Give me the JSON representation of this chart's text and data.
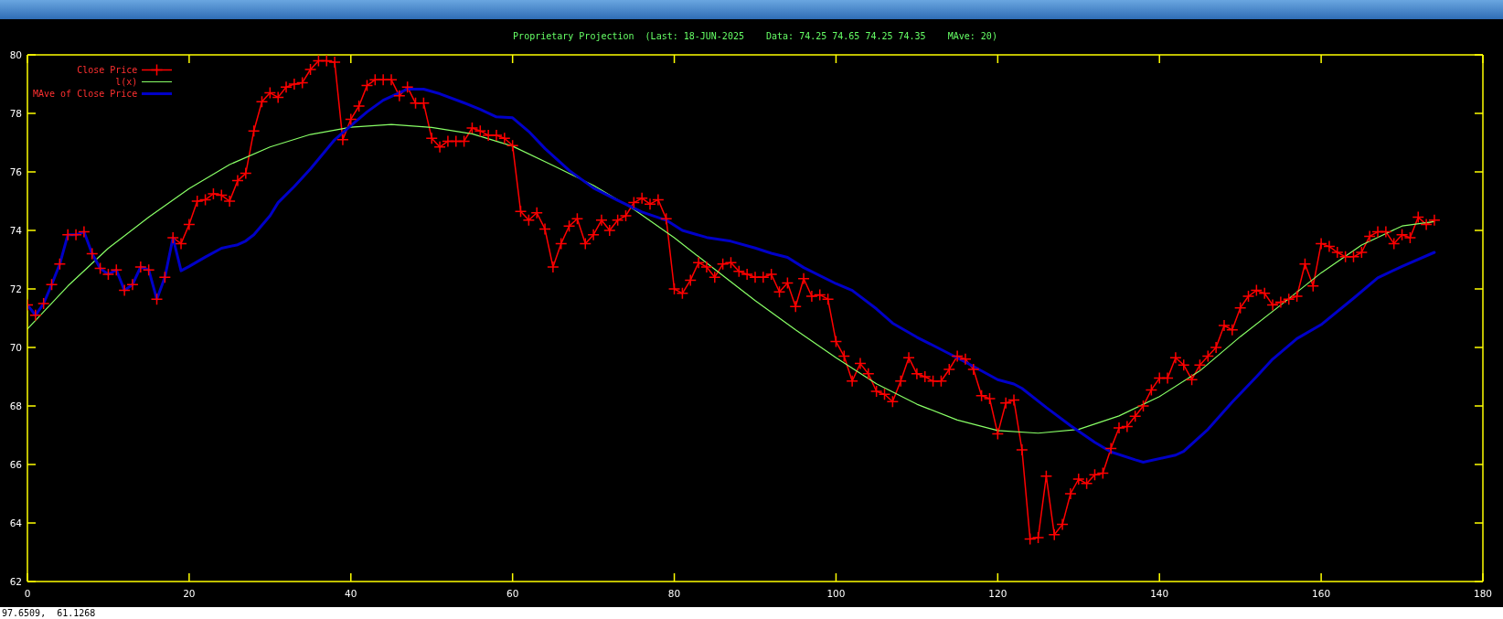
{
  "chart_data": {
    "type": "line",
    "title": "Proprietary Projection  (Last: 18-JUN-2025    Data: 74.25 74.65 74.25 74.35    MAve: 20)",
    "x": [
      0,
      1,
      2,
      3,
      4,
      5,
      6,
      7,
      8,
      9,
      10,
      11,
      12,
      13,
      14,
      15,
      16,
      17,
      18,
      19,
      20,
      21,
      22,
      23,
      24,
      25,
      26,
      27,
      28,
      29,
      30,
      31,
      32,
      33,
      34,
      35,
      36,
      37,
      38,
      39,
      40,
      41,
      42,
      43,
      44,
      45,
      46,
      47,
      48,
      49,
      50,
      51,
      52,
      53,
      54,
      55,
      56,
      57,
      58,
      59,
      60,
      61,
      62,
      63,
      64,
      65,
      66,
      67,
      68,
      69,
      70,
      71,
      72,
      73,
      74,
      75,
      76,
      77,
      78,
      79,
      80,
      81,
      82,
      83,
      84,
      85,
      86,
      87,
      88,
      89,
      90,
      91,
      92,
      93,
      94,
      95,
      96,
      97,
      98,
      99,
      100,
      101,
      102,
      103,
      104,
      105,
      106,
      107,
      108,
      109,
      110,
      111,
      112,
      113,
      114,
      115,
      116,
      117,
      118,
      119,
      120,
      121,
      122,
      123,
      124,
      125,
      126,
      127,
      128,
      129,
      130,
      131,
      132,
      133,
      134,
      135,
      136,
      137,
      138,
      139,
      140,
      141,
      142,
      143,
      144,
      145,
      146,
      147,
      148,
      149,
      150,
      151,
      152,
      153,
      154,
      155,
      156,
      157,
      158,
      159,
      160,
      161,
      162,
      163,
      164,
      165,
      166,
      167,
      168,
      169,
      170,
      171,
      172,
      173,
      174
    ],
    "series": [
      {
        "name": "Close Price",
        "color": "#ff0000",
        "marker": "cross",
        "values": [
          71.45,
          71.1,
          71.5,
          72.15,
          72.85,
          73.85,
          73.85,
          73.95,
          73.2,
          72.7,
          72.5,
          72.65,
          71.95,
          72.15,
          72.75,
          72.65,
          71.65,
          72.4,
          73.75,
          73.55,
          74.2,
          75.0,
          75.05,
          75.25,
          75.2,
          75.0,
          75.7,
          75.95,
          77.4,
          78.4,
          78.7,
          78.55,
          78.9,
          79.0,
          79.05,
          79.5,
          79.8,
          79.8,
          79.75,
          77.1,
          77.8,
          78.25,
          78.95,
          79.15,
          79.15,
          79.15,
          78.6,
          78.9,
          78.35,
          78.35,
          77.15,
          76.85,
          77.05,
          77.05,
          77.05,
          77.5,
          77.4,
          77.25,
          77.25,
          77.15,
          76.9,
          74.65,
          74.35,
          74.6,
          74.05,
          72.75,
          73.55,
          74.15,
          74.4,
          73.55,
          73.85,
          74.35,
          74.0,
          74.35,
          74.5,
          74.95,
          75.1,
          74.9,
          75.05,
          74.4,
          72.0,
          71.85,
          72.3,
          72.9,
          72.75,
          72.4,
          72.85,
          72.9,
          72.6,
          72.5,
          72.4,
          72.4,
          72.5,
          71.9,
          72.2,
          71.4,
          72.35,
          71.75,
          71.8,
          71.65,
          70.2,
          69.7,
          68.85,
          69.45,
          69.1,
          68.5,
          68.4,
          68.15,
          68.85,
          69.65,
          69.1,
          69.0,
          68.85,
          68.85,
          69.25,
          69.7,
          69.6,
          69.25,
          68.35,
          68.25,
          67.05,
          68.1,
          68.2,
          66.5,
          63.45,
          63.5,
          65.6,
          63.6,
          63.95,
          65.0,
          65.5,
          65.35,
          65.65,
          65.7,
          66.55,
          67.25,
          67.3,
          67.65,
          68.0,
          68.55,
          68.95,
          68.95,
          69.65,
          69.4,
          68.9,
          69.4,
          69.7,
          70.0,
          70.75,
          70.6,
          71.35,
          71.75,
          71.95,
          71.85,
          71.45,
          71.55,
          71.65,
          71.75,
          72.85,
          72.1,
          73.55,
          73.45,
          73.25,
          73.1,
          73.1,
          73.25,
          73.8,
          73.95,
          73.95,
          73.55,
          73.85,
          73.75,
          74.45,
          74.2,
          74.35
        ]
      },
      {
        "name": "l(x)",
        "color": "#88ff66",
        "marker": "none",
        "x": [
          0,
          5,
          10,
          15,
          20,
          25,
          30,
          35,
          40,
          45,
          50,
          55,
          60,
          65,
          70,
          75,
          80,
          85,
          90,
          95,
          100,
          105,
          110,
          115,
          120,
          125,
          130,
          135,
          140,
          145,
          150,
          155,
          160,
          165,
          170,
          174
        ],
        "values": [
          70.63,
          72.1,
          73.39,
          74.45,
          75.43,
          76.25,
          76.85,
          77.28,
          77.53,
          77.62,
          77.52,
          77.3,
          76.88,
          76.22,
          75.54,
          74.72,
          73.75,
          72.67,
          71.6,
          70.6,
          69.65,
          68.76,
          68.06,
          67.52,
          67.16,
          67.07,
          67.2,
          67.66,
          68.32,
          69.2,
          70.37,
          71.45,
          72.55,
          73.5,
          74.15,
          74.3
        ]
      },
      {
        "name": "MAve of Close Price",
        "color": "#0000c8",
        "marker": "none",
        "x": [
          0,
          1,
          2,
          3,
          4,
          5,
          6,
          7,
          8,
          9,
          10,
          11,
          12,
          13,
          14,
          15,
          16,
          17,
          18,
          19,
          20,
          22,
          24,
          26,
          27,
          28,
          30,
          31,
          33,
          35,
          38,
          40,
          42,
          44,
          47,
          49,
          51,
          54,
          56,
          58,
          60,
          62,
          64,
          67,
          70,
          73,
          76,
          79,
          81,
          84,
          87,
          90,
          92,
          94,
          96,
          100,
          102,
          105,
          107,
          110,
          113,
          116,
          117,
          120,
          122,
          123,
          126,
          129,
          132,
          134,
          137,
          138,
          142,
          143,
          146,
          149,
          152,
          154,
          157,
          160,
          164,
          167,
          170,
          174
        ],
        "values": [
          71.45,
          71.1,
          71.5,
          72.15,
          72.85,
          73.85,
          73.85,
          73.95,
          73.2,
          72.7,
          72.5,
          72.65,
          71.95,
          72.15,
          72.75,
          72.65,
          71.65,
          72.4,
          73.75,
          72.62,
          72.77,
          73.09,
          73.39,
          73.51,
          73.64,
          73.85,
          74.5,
          74.95,
          75.5,
          76.1,
          77.1,
          77.58,
          78.05,
          78.45,
          78.83,
          78.83,
          78.67,
          78.36,
          78.14,
          77.88,
          77.85,
          77.38,
          76.8,
          76.05,
          75.45,
          75.03,
          74.63,
          74.35,
          74.0,
          73.76,
          73.63,
          73.4,
          73.22,
          73.08,
          72.73,
          72.18,
          71.95,
          71.32,
          70.83,
          70.35,
          69.93,
          69.5,
          69.35,
          68.9,
          68.75,
          68.6,
          67.95,
          67.33,
          66.76,
          66.43,
          66.16,
          66.08,
          66.32,
          66.45,
          67.2,
          68.13,
          69.0,
          69.6,
          70.3,
          70.78,
          71.68,
          72.38,
          72.77,
          73.25
        ]
      }
    ],
    "xlim": [
      0,
      180
    ],
    "xticks": [
      0,
      20,
      40,
      60,
      80,
      100,
      120,
      140,
      160,
      180
    ],
    "ylim": [
      62,
      80
    ],
    "yticks": [
      62,
      64,
      66,
      68,
      70,
      72,
      74,
      76,
      78,
      80
    ],
    "legend": "top left",
    "annotations": [
      "97.6509,  61.1268"
    ]
  }
}
